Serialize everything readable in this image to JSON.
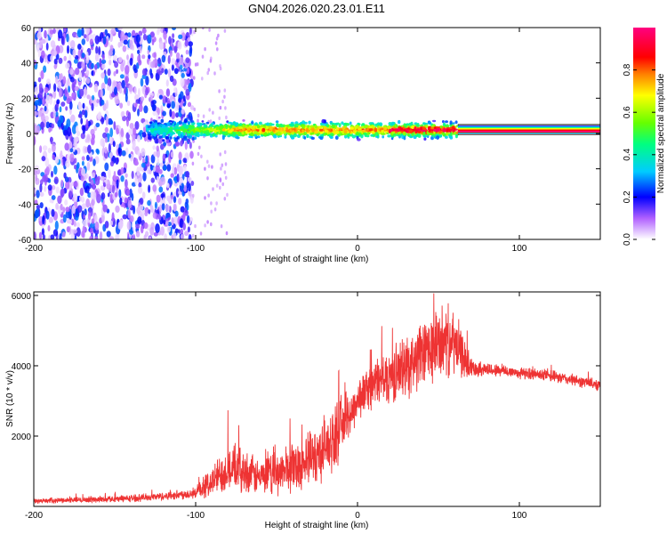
{
  "figure_title": "GN04.2026.020.23.01.E11",
  "chart_data": [
    {
      "type": "heatmap",
      "title": "GN04.2026.020.23.01.E11",
      "xlabel": "Height of straight line (km)",
      "ylabel": "Frequency (Hz)",
      "xlim": [
        -200,
        150
      ],
      "ylim": [
        -60,
        60
      ],
      "xticks": [
        -200,
        -100,
        0,
        100
      ],
      "xtick_labels": [
        "-200",
        "-100",
        "0",
        "100"
      ],
      "yticks": [
        -60,
        -40,
        -20,
        0,
        20,
        40,
        60
      ],
      "ytick_labels": [
        "-60",
        "-40",
        "-20",
        "0",
        "20",
        "40",
        "60"
      ],
      "colorbar": {
        "label": "Normalized spectral amplitude",
        "range": [
          0.0,
          1.0
        ],
        "ticks": [
          0.0,
          0.2,
          0.4,
          0.6,
          0.8
        ],
        "tick_labels": [
          "0.0",
          "0.2",
          "0.4",
          "0.6",
          "0.8"
        ],
        "colormap": [
          "#ffffff",
          "#8a2be2",
          "#0000ff",
          "#00ffff",
          "#00ff00",
          "#ffff00",
          "#ff8000",
          "#ff0000",
          "#ff00ff"
        ]
      },
      "regions": [
        {
          "name": "noise",
          "x_range": [
            -200,
            -102
          ],
          "freq_range": [
            -60,
            60
          ],
          "amplitude": 0.15
        },
        {
          "name": "sparse-noise",
          "x_range": [
            -102,
            -80
          ],
          "freq_range": [
            -60,
            60
          ],
          "amplitude": 0.05
        },
        {
          "name": "signal-band",
          "x_range": [
            -130,
            62
          ],
          "freq_center": 2,
          "freq_halfwidth": 6,
          "amplitude": 0.5
        },
        {
          "name": "constant-line",
          "x_range": [
            62,
            150
          ],
          "freq": 2,
          "amplitude": 1.0
        }
      ]
    },
    {
      "type": "line",
      "xlabel": "Height of straight line (km)",
      "ylabel": "SNR (10 * v/v)",
      "xlim": [
        -200,
        150
      ],
      "ylim": [
        0,
        6100
      ],
      "xticks": [
        -200,
        -100,
        0,
        100
      ],
      "xtick_labels": [
        "-200",
        "-100",
        "0",
        "100"
      ],
      "yticks": [
        2000,
        4000,
        6000
      ],
      "ytick_labels": [
        "2000",
        "4000",
        "6000"
      ],
      "series": [
        {
          "name": "SNR",
          "color": "#ee3333",
          "x": [
            -200,
            -180,
            -160,
            -140,
            -120,
            -100,
            -90,
            -80,
            -70,
            -60,
            -50,
            -40,
            -30,
            -20,
            -15,
            -10,
            -5,
            0,
            5,
            10,
            20,
            30,
            40,
            50,
            55,
            60,
            65,
            70,
            80,
            100,
            120,
            150
          ],
          "values": [
            150,
            180,
            200,
            230,
            290,
            380,
            700,
            1100,
            1000,
            800,
            950,
            1150,
            1300,
            1700,
            1900,
            2300,
            2600,
            3000,
            3300,
            3500,
            3700,
            4000,
            4300,
            4600,
            4700,
            4600,
            4300,
            3950,
            3900,
            3800,
            3700,
            3450
          ],
          "noise": [
            60,
            70,
            80,
            90,
            100,
            150,
            400,
            600,
            550,
            450,
            550,
            650,
            700,
            800,
            800,
            750,
            600,
            550,
            550,
            600,
            700,
            800,
            850,
            950,
            900,
            800,
            600,
            250,
            180,
            150,
            150,
            150
          ]
        }
      ]
    }
  ]
}
